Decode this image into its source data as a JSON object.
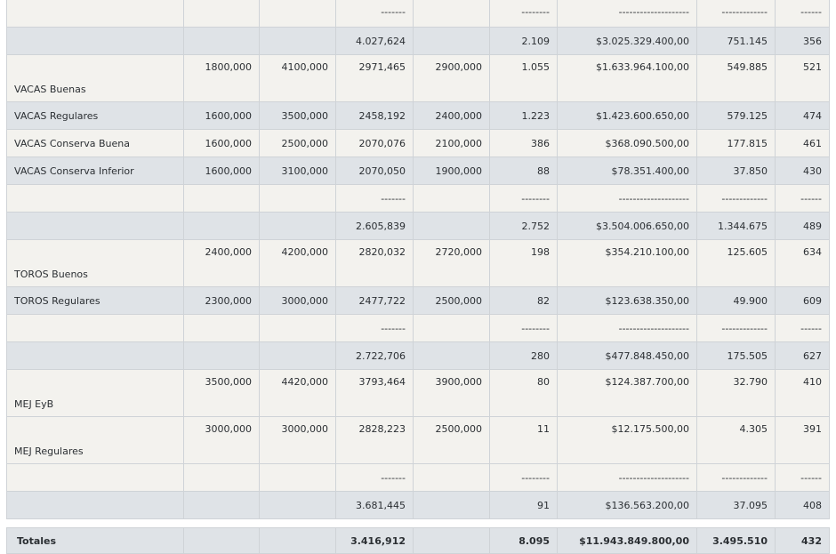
{
  "rows": [
    {
      "style": "light",
      "h": 34,
      "top": -3,
      "label": "",
      "c1": "",
      "c2": "",
      "c3": "-------",
      "c4": "",
      "c5": "--------",
      "c6": "--------------------",
      "c7": "-------------",
      "c8": "------"
    },
    {
      "style": "dark",
      "h": 31,
      "label": "",
      "c1": "",
      "c2": "",
      "c3": "4.027,624",
      "c4": "",
      "c5": "2.109",
      "c6": "$3.025.329.400,00",
      "c7": "751.145",
      "c8": "356"
    },
    {
      "style": "light tall",
      "h": 46,
      "label": "VACAS Buenas",
      "c1": "1800,000",
      "c2": "4100,000",
      "c3": "2971,465",
      "c4": "2900,000",
      "c5": "1.055",
      "c6": "$1.633.964.100,00",
      "c7": "549.885",
      "c8": "521"
    },
    {
      "style": "dark",
      "h": 31,
      "label": "VACAS Regulares",
      "c1": "1600,000",
      "c2": "3500,000",
      "c3": "2458,192",
      "c4": "2400,000",
      "c5": "1.223",
      "c6": "$1.423.600.650,00",
      "c7": "579.125",
      "c8": "474"
    },
    {
      "style": "light",
      "h": 31,
      "label": "VACAS Conserva Buena",
      "c1": "1600,000",
      "c2": "2500,000",
      "c3": "2070,076",
      "c4": "2100,000",
      "c5": "386",
      "c6": "$368.090.500,00",
      "c7": "177.815",
      "c8": "461"
    },
    {
      "style": "dark",
      "h": 31,
      "label": "VACAS Conserva Inferior",
      "c1": "1600,000",
      "c2": "3100,000",
      "c3": "2070,050",
      "c4": "1900,000",
      "c5": "88",
      "c6": "$78.351.400,00",
      "c7": "37.850",
      "c8": "430"
    },
    {
      "style": "light",
      "h": 31,
      "label": "",
      "c1": "",
      "c2": "",
      "c3": "-------",
      "c4": "",
      "c5": "--------",
      "c6": "--------------------",
      "c7": "-------------",
      "c8": "------"
    },
    {
      "style": "dark",
      "h": 31,
      "label": "",
      "c1": "",
      "c2": "",
      "c3": "2.605,839",
      "c4": "",
      "c5": "2.752",
      "c6": "$3.504.006.650,00",
      "c7": "1.344.675",
      "c8": "489"
    },
    {
      "style": "light tall",
      "h": 46,
      "label": "TOROS Buenos",
      "c1": "2400,000",
      "c2": "4200,000",
      "c3": "2820,032",
      "c4": "2720,000",
      "c5": "198",
      "c6": "$354.210.100,00",
      "c7": "125.605",
      "c8": "634"
    },
    {
      "style": "dark",
      "h": 31,
      "label": "TOROS Regulares",
      "c1": "2300,000",
      "c2": "3000,000",
      "c3": "2477,722",
      "c4": "2500,000",
      "c5": "82",
      "c6": "$123.638.350,00",
      "c7": "49.900",
      "c8": "609"
    },
    {
      "style": "light",
      "h": 31,
      "label": "",
      "c1": "",
      "c2": "",
      "c3": "-------",
      "c4": "",
      "c5": "--------",
      "c6": "--------------------",
      "c7": "-------------",
      "c8": "------"
    },
    {
      "style": "dark",
      "h": 31,
      "label": "",
      "c1": "",
      "c2": "",
      "c3": "2.722,706",
      "c4": "",
      "c5": "280",
      "c6": "$477.848.450,00",
      "c7": "175.505",
      "c8": "627"
    },
    {
      "style": "light tall",
      "h": 46,
      "label": "MEJ EyB",
      "c1": "3500,000",
      "c2": "4420,000",
      "c3": "3793,464",
      "c4": "3900,000",
      "c5": "80",
      "c6": "$124.387.700,00",
      "c7": "32.790",
      "c8": "410"
    },
    {
      "style": "light tall",
      "h": 46,
      "label": "MEJ Regulares",
      "c1": "3000,000",
      "c2": "3000,000",
      "c3": "2828,223",
      "c4": "2500,000",
      "c5": "11",
      "c6": "$12.175.500,00",
      "c7": "4.305",
      "c8": "391"
    },
    {
      "style": "light",
      "h": 31,
      "label": "",
      "c1": "",
      "c2": "",
      "c3": "-------",
      "c4": "",
      "c5": "--------",
      "c6": "--------------------",
      "c7": "-------------",
      "c8": "------"
    },
    {
      "style": "dark",
      "h": 31,
      "label": "",
      "c1": "",
      "c2": "",
      "c3": "3.681,445",
      "c4": "",
      "c5": "91",
      "c6": "$136.563.200,00",
      "c7": "37.095",
      "c8": "408"
    }
  ],
  "totals": {
    "label": "Totales",
    "c1": "",
    "c2": "",
    "c3": "3.416,912",
    "c4": "",
    "c5": "8.095",
    "c6": "$11.943.849.800,00",
    "c7": "3.495.510",
    "c8": "432"
  }
}
